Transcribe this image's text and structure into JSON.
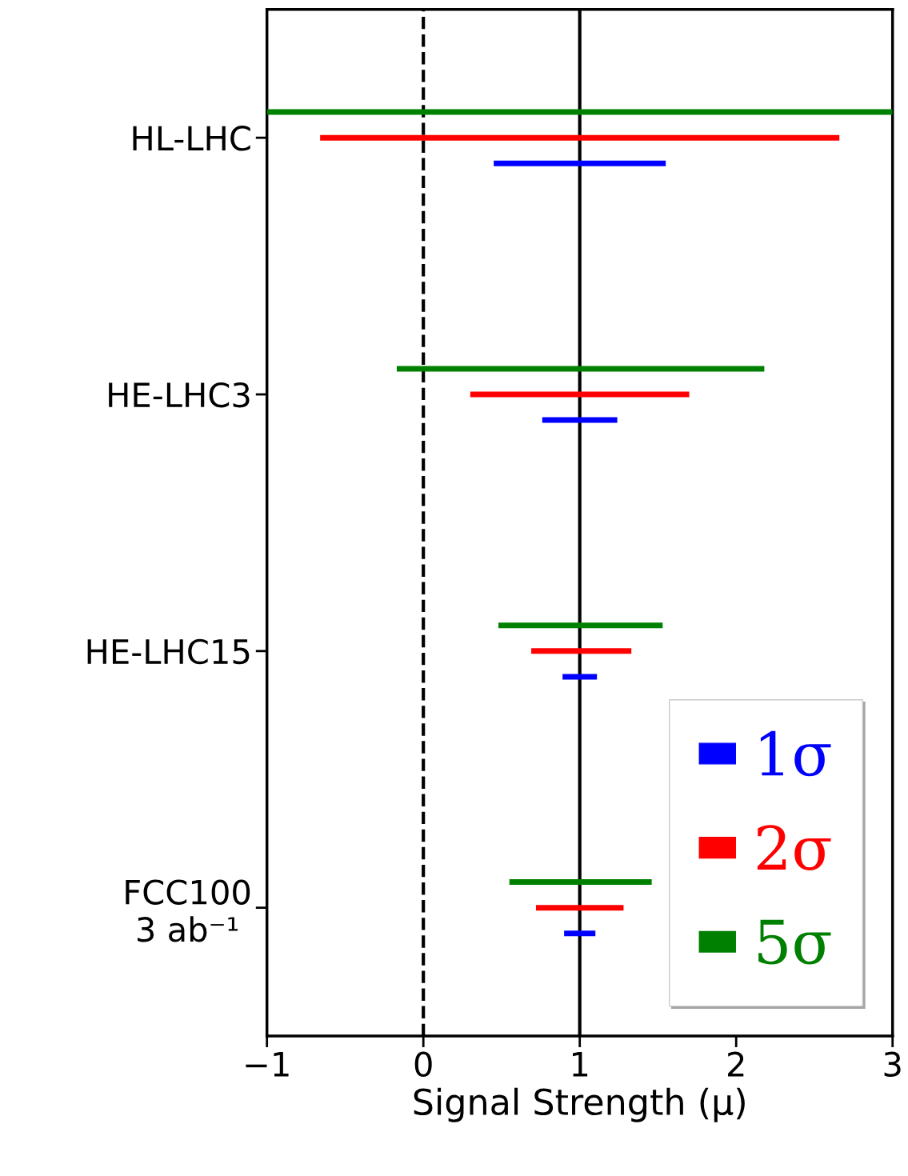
{
  "chart_data": {
    "type": "bar",
    "orientation": "horizontal",
    "xlabel": "Signal Strength (μ)",
    "categories": [
      "HL-LHC",
      "HE-LHC3",
      "HE-LHC15",
      "FCC100\n3 ab⁻¹"
    ],
    "xlim": [
      -1,
      3
    ],
    "xticks": [
      {
        "value": -1,
        "label": "−1"
      },
      0,
      1,
      2,
      3
    ],
    "legend": "bottom right",
    "grid": false,
    "series": [
      {
        "name": "1σ",
        "color": "#0000ff",
        "base": [
          0.45,
          0.76,
          0.89,
          0.9
        ],
        "values": [
          1.1,
          0.48,
          0.22,
          0.2
        ]
      },
      {
        "name": "2σ",
        "color": "#ff0000",
        "base": [
          -0.66,
          0.3,
          0.69,
          0.72
        ],
        "values": [
          3.32,
          1.4,
          0.64,
          0.56
        ]
      },
      {
        "name": "5σ",
        "color": "#008000",
        "base": [
          -1,
          -0.17,
          0.48,
          0.55
        ],
        "values": [
          4,
          2.35,
          1.05,
          0.91
        ]
      }
    ],
    "ref_lines": [
      {
        "axis": "x",
        "value": 0,
        "color": "#000000",
        "line_style": "dashed"
      },
      {
        "axis": "x",
        "value": 1,
        "color": "#000000",
        "line_style": "solid"
      }
    ]
  }
}
